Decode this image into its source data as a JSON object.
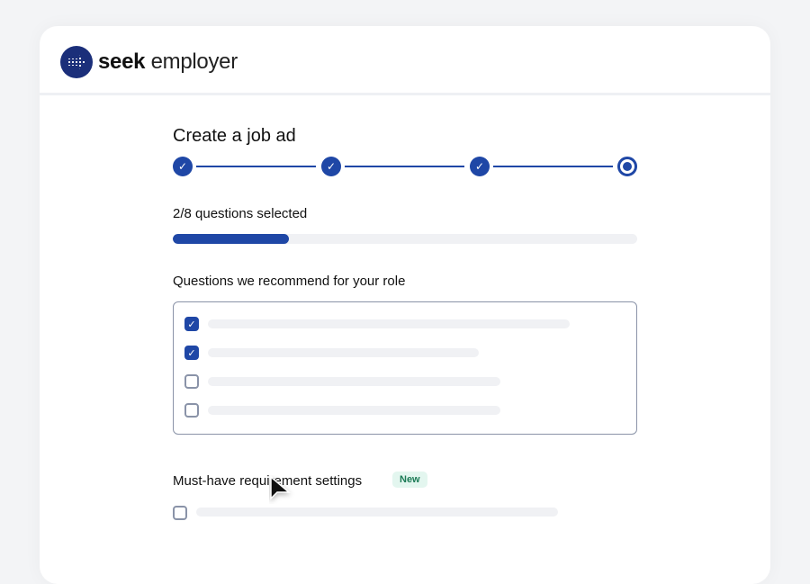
{
  "brand": {
    "bold": "seek",
    "light": "employer"
  },
  "page": {
    "title": "Create a job ad"
  },
  "stepper": {
    "steps": [
      {
        "state": "complete"
      },
      {
        "state": "complete"
      },
      {
        "state": "complete"
      },
      {
        "state": "current"
      }
    ]
  },
  "progress": {
    "label": "2/8 questions selected",
    "selected": 2,
    "total": 8,
    "percent": 25
  },
  "recommended": {
    "heading": "Questions we recommend for your role",
    "items": [
      {
        "checked": true
      },
      {
        "checked": true
      },
      {
        "checked": false
      },
      {
        "checked": false
      }
    ]
  },
  "must_have": {
    "heading": "Must-have requirement settings",
    "badge": "New",
    "items": [
      {
        "checked": false
      }
    ]
  },
  "colors": {
    "accent": "#1f47a6",
    "badge_bg": "#e3f6ef",
    "badge_text": "#1b7a55",
    "background": "#f3f4f6"
  }
}
